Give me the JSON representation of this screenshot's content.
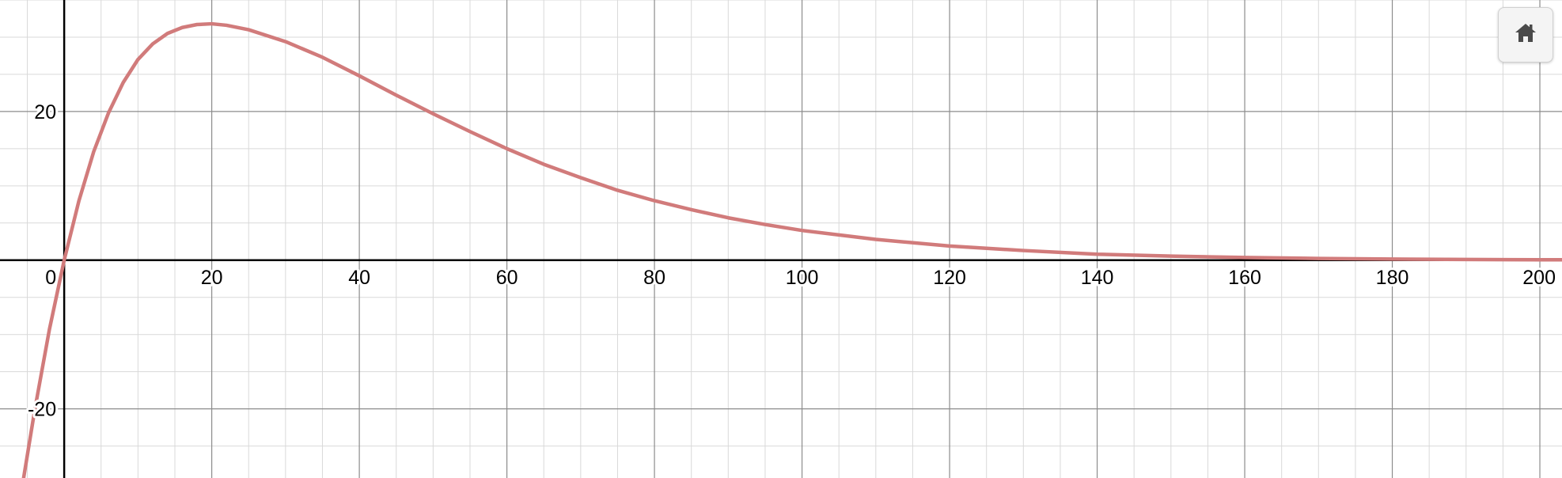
{
  "chart_data": {
    "type": "line",
    "title": "",
    "xlabel": "",
    "ylabel": "",
    "xlim": [
      -8.7,
      203
    ],
    "ylim": [
      -29.3,
      35
    ],
    "grid": true,
    "x_ticks": [
      0,
      20,
      40,
      60,
      80,
      100,
      120,
      140,
      160,
      180,
      200
    ],
    "x_tick_labels": [
      "0",
      "20",
      "40",
      "60",
      "80",
      "100",
      "120",
      "140",
      "160",
      "180",
      "200"
    ],
    "y_ticks": [
      20,
      -20
    ],
    "y_tick_labels": [
      "20",
      "-20"
    ],
    "series": [
      {
        "color": "#d17b7b",
        "points": [
          [
            -5.5,
            -29.3
          ],
          [
            -4,
            -20.2
          ],
          [
            -2,
            -9.3
          ],
          [
            0,
            0
          ],
          [
            2,
            8.0
          ],
          [
            4,
            14.6
          ],
          [
            6,
            19.8
          ],
          [
            8,
            23.9
          ],
          [
            10,
            27.0
          ],
          [
            12,
            29.1
          ],
          [
            14,
            30.5
          ],
          [
            16,
            31.3
          ],
          [
            18,
            31.7
          ],
          [
            20,
            31.8
          ],
          [
            22,
            31.6
          ],
          [
            25,
            31.0
          ],
          [
            30,
            29.4
          ],
          [
            35,
            27.3
          ],
          [
            40,
            24.8
          ],
          [
            45,
            22.2
          ],
          [
            50,
            19.7
          ],
          [
            55,
            17.3
          ],
          [
            60,
            15.0
          ],
          [
            65,
            12.9
          ],
          [
            70,
            11.1
          ],
          [
            75,
            9.4
          ],
          [
            80,
            8.0
          ],
          [
            85,
            6.8
          ],
          [
            90,
            5.7
          ],
          [
            95,
            4.8
          ],
          [
            100,
            4.0
          ],
          [
            110,
            2.8
          ],
          [
            120,
            1.9
          ],
          [
            130,
            1.3
          ],
          [
            140,
            0.8
          ],
          [
            150,
            0.55
          ],
          [
            160,
            0.36
          ],
          [
            170,
            0.23
          ],
          [
            180,
            0.15
          ],
          [
            190,
            0.09
          ],
          [
            200,
            0.06
          ],
          [
            203,
            0.05
          ]
        ]
      }
    ]
  },
  "controls": {
    "home_icon": "home-icon"
  }
}
